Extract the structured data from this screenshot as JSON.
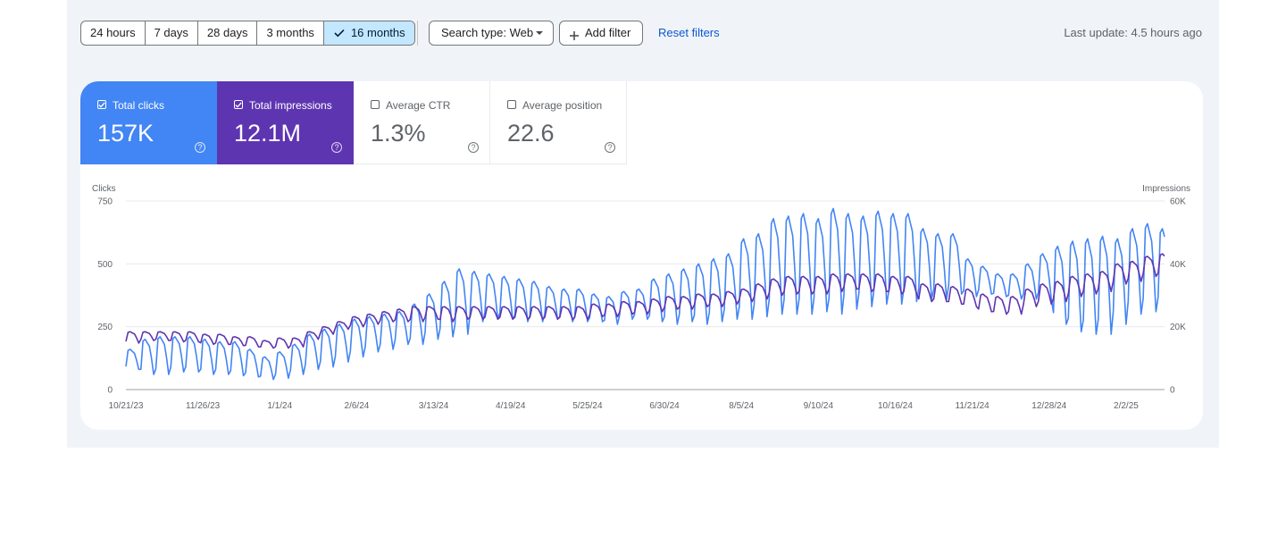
{
  "toolbar": {
    "ranges": [
      "24 hours",
      "7 days",
      "28 days",
      "3 months",
      "16 months"
    ],
    "active_range": "16 months",
    "search_type": "Search type: Web",
    "add_filter": "Add filter",
    "reset_filters": "Reset filters",
    "last_update": "Last update: 4.5 hours ago"
  },
  "metrics": [
    {
      "label": "Total clicks",
      "value": "157K",
      "checked": true,
      "color": "#4285f4"
    },
    {
      "label": "Total impressions",
      "value": "12.1M",
      "checked": true,
      "color": "#5e35b1"
    },
    {
      "label": "Average CTR",
      "value": "1.3%",
      "checked": false
    },
    {
      "label": "Average position",
      "value": "22.6",
      "checked": false
    }
  ],
  "chart_data": {
    "type": "line",
    "left_axis": {
      "title": "Clicks",
      "ticks": [
        0,
        250,
        500,
        750
      ],
      "tick_labels": [
        "0",
        "250",
        "500",
        "750"
      ],
      "range": [
        0,
        750
      ]
    },
    "right_axis": {
      "title": "Impressions",
      "ticks": [
        0,
        20000,
        40000,
        60000
      ],
      "tick_labels": [
        "0",
        "20K",
        "40K",
        "60K"
      ],
      "range": [
        0,
        60000
      ]
    },
    "x_tick_labels": [
      "10/21/23",
      "11/26/23",
      "1/1/24",
      "2/6/24",
      "3/13/24",
      "4/19/24",
      "5/25/24",
      "6/30/24",
      "8/5/24",
      "9/10/24",
      "10/16/24",
      "11/21/24",
      "12/28/24",
      "2/2/25"
    ],
    "x_range": [
      "2023-10-21",
      "2025-02-18"
    ],
    "grid": true,
    "series": [
      {
        "name": "Clicks",
        "axis": "left",
        "color": "#4285f4",
        "weekly_low": [
          80,
          60,
          60,
          70,
          70,
          60,
          60,
          55,
          50,
          40,
          45,
          60,
          80,
          90,
          110,
          130,
          150,
          160,
          180,
          180,
          200,
          210,
          220,
          270,
          280,
          280,
          270,
          270,
          280,
          270,
          270,
          270,
          260,
          280,
          280,
          270,
          260,
          270,
          260,
          270,
          280,
          280,
          290,
          300,
          300,
          300,
          310,
          300,
          320,
          330,
          340,
          340,
          350,
          360,
          360,
          380,
          370,
          380,
          370,
          360,
          360,
          360,
          260,
          230,
          220,
          220,
          260,
          300,
          310,
          320,
          320,
          300,
          270,
          260,
          300
        ],
        "weekly_high": [
          160,
          200,
          210,
          210,
          210,
          200,
          190,
          190,
          160,
          130,
          150,
          180,
          220,
          240,
          260,
          280,
          290,
          300,
          310,
          340,
          380,
          430,
          480,
          470,
          460,
          450,
          440,
          430,
          410,
          400,
          400,
          380,
          370,
          390,
          400,
          440,
          460,
          480,
          500,
          520,
          540,
          600,
          620,
          680,
          690,
          700,
          680,
          720,
          700,
          690,
          710,
          700,
          700,
          640,
          620,
          620,
          520,
          490,
          460,
          460,
          500,
          540,
          570,
          590,
          600,
          610,
          600,
          640,
          660,
          640,
          640,
          600,
          560,
          550,
          540
        ]
      },
      {
        "name": "Impressions",
        "axis": "right",
        "color": "#5e35b1",
        "weekly_low": [
          14800,
          15600,
          15600,
          15200,
          15200,
          14400,
          14400,
          14000,
          13600,
          13200,
          13200,
          13600,
          16000,
          17600,
          19200,
          20000,
          20800,
          21600,
          21600,
          21600,
          22400,
          21600,
          22400,
          22400,
          22400,
          22400,
          22400,
          22400,
          22400,
          22400,
          22400,
          23200,
          23200,
          24000,
          24000,
          24800,
          25600,
          25600,
          26400,
          26400,
          27200,
          28000,
          28800,
          30000,
          30400,
          30400,
          30400,
          31200,
          32000,
          31200,
          31200,
          30400,
          30400,
          28000,
          28000,
          27200,
          26400,
          24800,
          24000,
          24000,
          26400,
          27200,
          28000,
          29600,
          30400,
          31200,
          33600,
          34400,
          36000,
          36000,
          35200,
          36000,
          38400,
          39200,
          40000
        ],
        "weekly_high": [
          18400,
          18400,
          18400,
          18400,
          18400,
          17600,
          17600,
          16800,
          16800,
          15600,
          16400,
          16400,
          18400,
          20000,
          21600,
          23200,
          24000,
          24800,
          25600,
          26400,
          26400,
          26400,
          26400,
          26400,
          26400,
          26400,
          26400,
          26400,
          26400,
          26400,
          26400,
          27200,
          27200,
          28000,
          28000,
          28800,
          29600,
          29600,
          30400,
          30400,
          31200,
          32000,
          33600,
          35200,
          36000,
          36000,
          36000,
          36800,
          36800,
          36800,
          36800,
          36000,
          36000,
          33600,
          33600,
          32800,
          32000,
          30400,
          29600,
          29600,
          32000,
          33600,
          34400,
          36000,
          36800,
          37600,
          40000,
          40800,
          42400,
          43200,
          42400,
          42400,
          44800,
          45600,
          46400
        ]
      }
    ]
  }
}
